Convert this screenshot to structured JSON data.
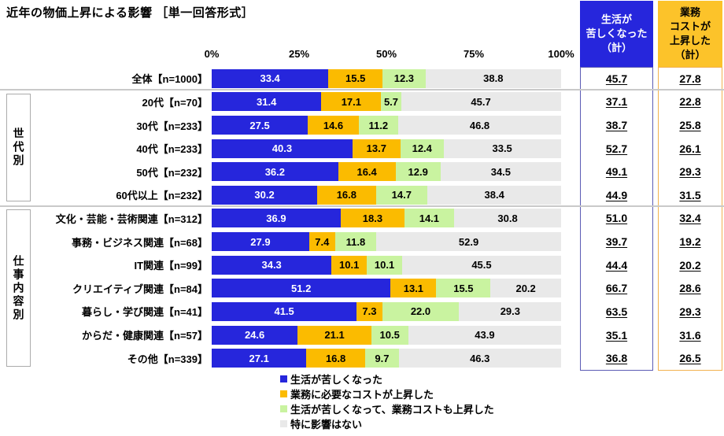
{
  "title": "近年の物価上昇による影響 ［単一回答形式］",
  "axis": {
    "ticks": [
      "0%",
      "25%",
      "50%",
      "75%",
      "100%"
    ]
  },
  "colors": {
    "series_blue": "#2626dc",
    "series_orange": "#fbbb00",
    "series_green": "#c9f3a0",
    "series_gray": "#e9e9e9",
    "life_box_border": "#5b5bb4",
    "cost_box_border": "#f2b14e",
    "life_header_bg": "#2626dc",
    "cost_header_bg": "#fcc32a",
    "separator": "#c9c9c9"
  },
  "summary_columns": {
    "life": {
      "header": "生活が\n苦しくなった\n（計）"
    },
    "cost": {
      "header": "業務\nコストが\n上昇した\n（計）"
    }
  },
  "groups": [
    {
      "label": "世代別"
    },
    {
      "label": "仕事内容別"
    }
  ],
  "chart_data": {
    "type": "bar",
    "variant": "horizontal-stacked-100",
    "xlim": [
      0,
      100
    ],
    "categories": [
      "全体【n=1000】",
      "20代【n=70】",
      "30代【n=233】",
      "40代【n=233】",
      "50代【n=232】",
      "60代以上【n=232】",
      "文化・芸能・芸術関連【n=312】",
      "事務・ビジネス関連【n=68】",
      "IT関連【n=99】",
      "クリエイティブ関連【n=84】",
      "暮らし・学び関連【n=41】",
      "からだ・健康関連【n=57】",
      "その他【n=339】"
    ],
    "series": [
      {
        "name": "生活が苦しくなった",
        "color": "#2626dc",
        "label_color": "#ffffff",
        "values": [
          "33.4",
          "31.4",
          "27.5",
          "40.3",
          "36.2",
          "30.2",
          "36.9",
          "27.9",
          "34.3",
          "51.2",
          "41.5",
          "24.6",
          "27.1"
        ]
      },
      {
        "name": "業務に必要なコストが上昇した",
        "color": "#fbbb00",
        "label_color": "#000000",
        "values": [
          "15.5",
          "17.1",
          "14.6",
          "13.7",
          "16.4",
          "16.8",
          "18.3",
          "7.4",
          "10.1",
          "13.1",
          "7.3",
          "21.1",
          "16.8"
        ]
      },
      {
        "name": "生活が苦しくなって、業務コストも上昇した",
        "color": "#c9f3a0",
        "label_color": "#000000",
        "values": [
          "12.3",
          "5.7",
          "11.2",
          "12.4",
          "12.9",
          "14.7",
          "14.1",
          "11.8",
          "10.1",
          "15.5",
          "22.0",
          "10.5",
          "9.7"
        ]
      },
      {
        "name": "特に影響はない",
        "color": "#e9e9e9",
        "label_color": "#000000",
        "values": [
          "38.8",
          "45.7",
          "46.8",
          "33.5",
          "34.5",
          "38.4",
          "30.8",
          "52.9",
          "45.5",
          "20.2",
          "29.3",
          "43.9",
          "46.3"
        ]
      }
    ],
    "summary": {
      "life_total": [
        "45.7",
        "37.1",
        "38.7",
        "52.7",
        "49.1",
        "44.9",
        "51.0",
        "39.7",
        "44.4",
        "66.7",
        "63.5",
        "35.1",
        "36.8"
      ],
      "cost_total": [
        "27.8",
        "22.8",
        "25.8",
        "26.1",
        "29.3",
        "31.5",
        "32.4",
        "19.2",
        "20.2",
        "28.6",
        "29.3",
        "31.6",
        "26.5"
      ]
    }
  }
}
